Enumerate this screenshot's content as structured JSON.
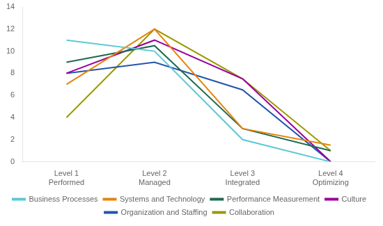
{
  "chart_data": {
    "type": "line",
    "categories": [
      "Level 1\nPerformed",
      "Level 2\nManaged",
      "Level 3\nIntegrated",
      "Level 4\nOptimizing"
    ],
    "series": [
      {
        "name": "Business Processes",
        "color": "#5BC8D5",
        "values": [
          11,
          10,
          2,
          0
        ]
      },
      {
        "name": "Systems and Technology",
        "color": "#E8820C",
        "values": [
          7,
          12,
          3,
          1.5
        ]
      },
      {
        "name": "Performance Measurement",
        "color": "#1E6B50",
        "values": [
          9,
          10.5,
          3,
          1
        ]
      },
      {
        "name": "Culture",
        "color": "#990099",
        "values": [
          8,
          11,
          7.5,
          0
        ]
      },
      {
        "name": "Organization and Staffing",
        "color": "#2255AA",
        "values": [
          8,
          9,
          6.5,
          0
        ]
      },
      {
        "name": "Collaboration",
        "color": "#999900",
        "values": [
          4,
          12,
          7.5,
          1
        ]
      }
    ],
    "ylim": [
      0,
      14
    ],
    "yticks": [
      0,
      2,
      4,
      6,
      8,
      10,
      12,
      14
    ],
    "grid": false,
    "legend": "bottom"
  }
}
